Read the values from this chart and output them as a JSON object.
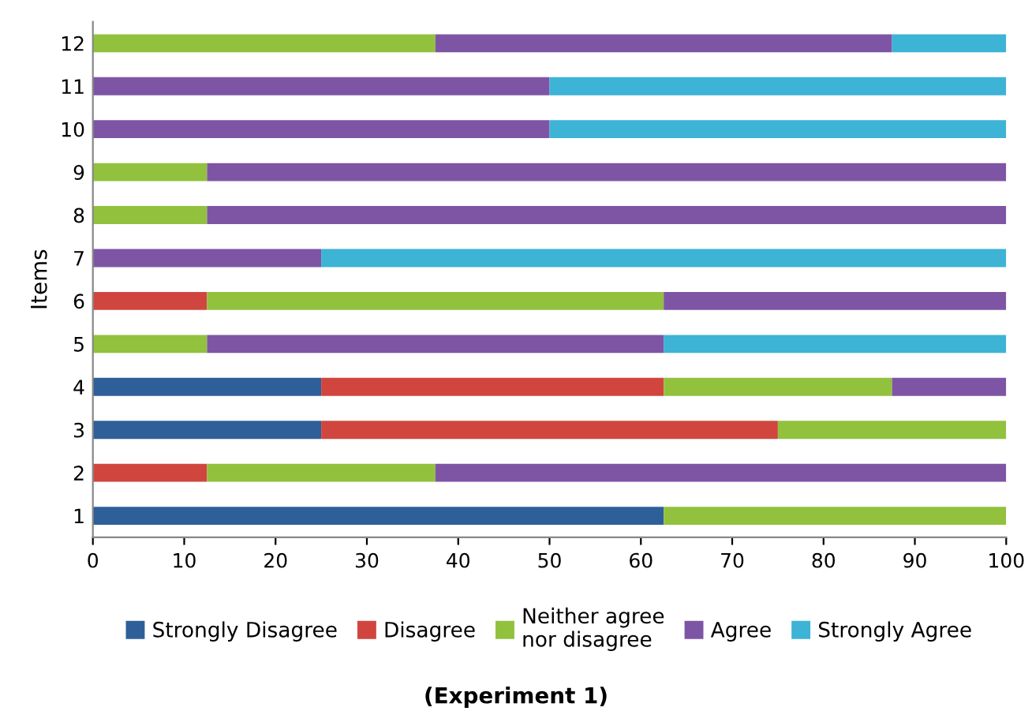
{
  "chart_data": {
    "type": "bar",
    "orientation": "horizontal",
    "stacked": true,
    "title": "(Experiment 1)",
    "ylabel": "Items",
    "categories": [
      "12",
      "11",
      "10",
      "9",
      "8",
      "7",
      "6",
      "5",
      "4",
      "3",
      "2",
      "1"
    ],
    "series": [
      {
        "name": "Strongly Disagree",
        "color": "#2f5f98",
        "values": [
          0,
          0,
          0,
          0,
          0,
          0,
          0,
          0,
          25,
          25,
          0,
          62.5
        ]
      },
      {
        "name": "Disagree",
        "color": "#d0463f",
        "values": [
          0,
          0,
          0,
          0,
          0,
          0,
          12.5,
          0,
          37.5,
          50,
          12.5,
          0
        ]
      },
      {
        "name": "Neither agree\nnor disagree",
        "color": "#92c13e",
        "values": [
          37.5,
          0,
          0,
          12.5,
          12.5,
          0,
          50,
          12.5,
          25,
          25,
          25,
          37.5
        ]
      },
      {
        "name": "Agree",
        "color": "#7e55a5",
        "values": [
          50,
          50,
          50,
          87.5,
          87.5,
          25,
          37.5,
          50,
          12.5,
          0,
          62.5,
          0
        ]
      },
      {
        "name": "Strongly Agree",
        "color": "#3db3d5",
        "values": [
          12.5,
          50,
          50,
          0,
          0,
          75,
          0,
          37.5,
          0,
          0,
          0,
          0
        ]
      }
    ],
    "xlim": [
      0,
      100
    ],
    "xticks": [
      0,
      10,
      20,
      30,
      40,
      50,
      60,
      70,
      80,
      90,
      100
    ],
    "grid": false,
    "legend": "bottom"
  }
}
